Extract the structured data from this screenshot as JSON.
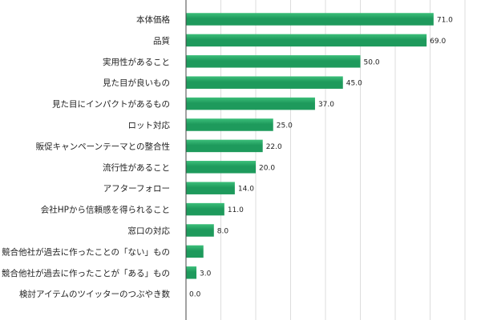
{
  "chart_data": {
    "type": "bar",
    "orientation": "horizontal",
    "categories": [
      "本体価格",
      "品質",
      "実用性があること",
      "見た目が良いもの",
      "見た目にインパクトがあるもの",
      "ロット対応",
      "販促キャンペーンテーマとの整合性",
      "流行性があること",
      "アフターフォロー",
      "会社HPから信頼感を得られること",
      "窓口の対応",
      "競合他社が過去に作ったことの「ない」もの",
      "競合他社が過去に作ったことが「ある」もの",
      "検討アイテムのツイッターのつぶやき数"
    ],
    "values": [
      71.0,
      69.0,
      50.0,
      45.0,
      37.0,
      25.0,
      22.0,
      20.0,
      14.0,
      11.0,
      8.0,
      5.0,
      3.0,
      0.0
    ],
    "value_labels": [
      "71.0",
      "69.0",
      "50.0",
      "45.0",
      "37.0",
      "25.0",
      "22.0",
      "20.0",
      "14.0",
      "11.0",
      "8.0",
      "",
      "3.0",
      "0.0"
    ],
    "xlim": [
      0,
      80
    ],
    "grid": true,
    "colors": {
      "bar": "#1e9a5c",
      "bar_light": "#3cbf7a",
      "grid": "#dddddd",
      "axis": "#444444"
    }
  }
}
